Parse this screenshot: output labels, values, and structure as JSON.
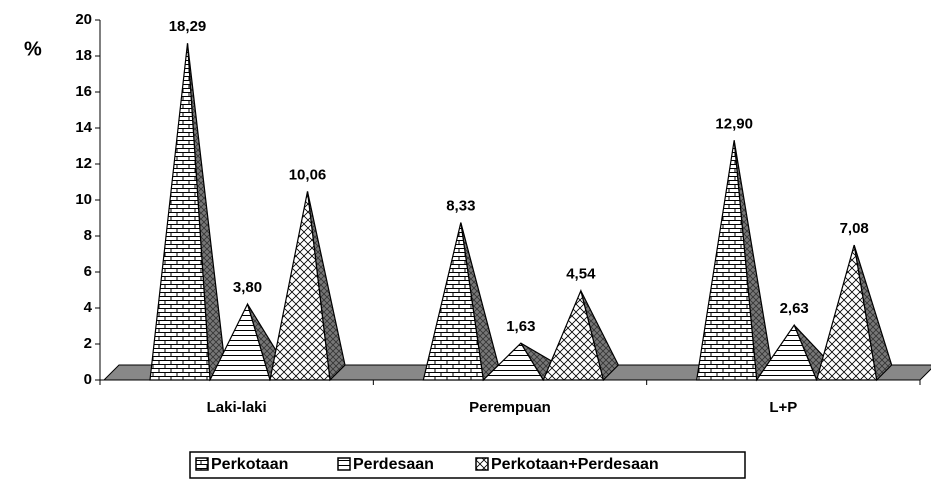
{
  "chart_data": {
    "type": "pyramid",
    "y_label": "%",
    "categories": [
      "Laki-laki",
      "Perempuan",
      "L+P"
    ],
    "series": [
      {
        "name": "Perkotaan",
        "values": [
          18.29,
          8.33,
          12.9
        ],
        "value_labels": [
          "18,29",
          "8,33",
          "12,90"
        ]
      },
      {
        "name": "Perdesaan",
        "values": [
          3.8,
          1.63,
          2.63
        ],
        "value_labels": [
          "3,80",
          "1,63",
          "2,63"
        ]
      },
      {
        "name": "Perkotaan+Perdesaan",
        "values": [
          10.06,
          4.54,
          7.08
        ],
        "value_labels": [
          "10,06",
          "4,54",
          "7,08"
        ]
      }
    ],
    "ylim": [
      0,
      20
    ],
    "yticks": [
      0,
      2,
      4,
      6,
      8,
      10,
      12,
      14,
      16,
      18,
      20
    ],
    "legend": "bottom"
  }
}
